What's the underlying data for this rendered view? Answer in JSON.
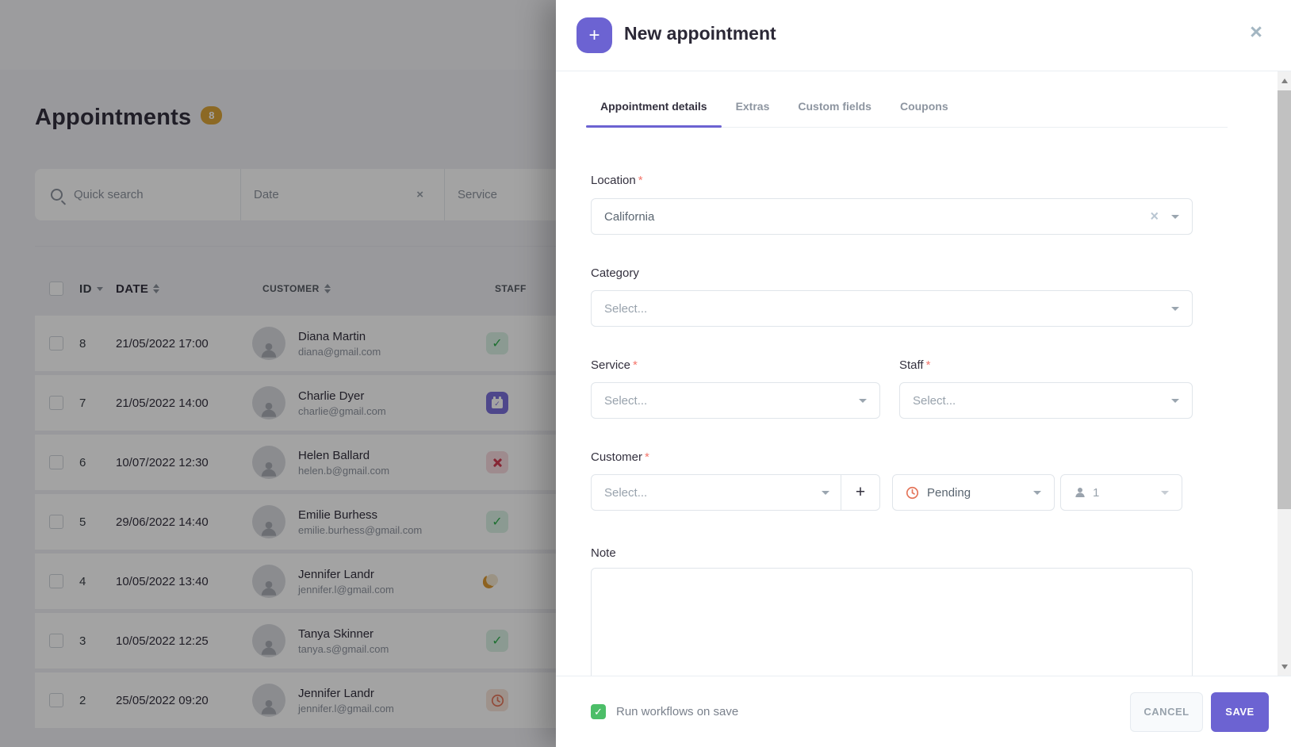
{
  "page": {
    "title": "Appointments",
    "count_badge": "8",
    "filters": {
      "search_placeholder": "Quick search",
      "date_label": "Date",
      "service_label": "Service",
      "clear_icon": "×"
    },
    "table": {
      "columns": {
        "id": "ID",
        "date": "DATE",
        "customer": "CUSTOMER",
        "staff": "STAFF"
      },
      "rows": [
        {
          "id": "8",
          "date": "21/05/2022 17:00",
          "name": "Diana Martin",
          "email": "diana@gmail.com",
          "status": "approved"
        },
        {
          "id": "7",
          "date": "21/05/2022 14:00",
          "name": "Charlie Dyer",
          "email": "charlie@gmail.com",
          "status": "calendar"
        },
        {
          "id": "6",
          "date": "10/07/2022 12:30",
          "name": "Helen Ballard",
          "email": "helen.b@gmail.com",
          "status": "rejected"
        },
        {
          "id": "5",
          "date": "29/06/2022 14:40",
          "name": "Emilie Burhess",
          "email": "emilie.burhess@gmail.com",
          "status": "approved"
        },
        {
          "id": "4",
          "date": "10/05/2022 13:40",
          "name": "Jennifer Landr",
          "email": "jennifer.l@gmail.com",
          "status": "moon"
        },
        {
          "id": "3",
          "date": "10/05/2022 12:25",
          "name": "Tanya Skinner",
          "email": "tanya.s@gmail.com",
          "status": "approved"
        },
        {
          "id": "2",
          "date": "25/05/2022 09:20",
          "name": "Jennifer Landr",
          "email": "jennifer.l@gmail.com",
          "status": "pending"
        }
      ]
    }
  },
  "modal": {
    "title": "New appointment",
    "plus_icon": "+",
    "close_icon": "×",
    "required_marker": "*",
    "tabs": [
      {
        "label": "Appointment details",
        "active": true
      },
      {
        "label": "Extras",
        "active": false
      },
      {
        "label": "Custom fields",
        "active": false
      },
      {
        "label": "Coupons",
        "active": false
      }
    ],
    "fields": {
      "location": {
        "label": "Location",
        "value": "California"
      },
      "category": {
        "label": "Category",
        "placeholder": "Select..."
      },
      "service": {
        "label": "Service",
        "placeholder": "Select..."
      },
      "staff": {
        "label": "Staff",
        "placeholder": "Select..."
      },
      "customer": {
        "label": "Customer",
        "placeholder": "Select...",
        "add_icon": "+"
      },
      "status": {
        "value": "Pending"
      },
      "attendees": {
        "value": "1"
      },
      "note": {
        "label": "Note",
        "value": ""
      }
    },
    "footer": {
      "workflow_label": "Run workflows on save",
      "workflow_checked": true,
      "check_icon": "✓",
      "cancel_label": "CANCEL",
      "save_label": "SAVE"
    }
  },
  "icons": {
    "search": "magnifier",
    "sort": "up-down-triangles",
    "status_approved": "green-check",
    "status_calendar": "purple-calendar-check",
    "status_rejected": "red-cross",
    "status_moon": "orange-crescent-moon",
    "status_pending": "orange-clock",
    "customer_placeholder": "person-silhouette"
  },
  "colors": {
    "accent_purple": "#6C63D2",
    "badge_gold": "#DBA539",
    "approved_green": "#2FAF4E",
    "rejected_red": "#D23C52",
    "pending_orange": "#E4765B",
    "moon_orange": "#DD9A33",
    "workflow_green": "#4CBE68"
  }
}
